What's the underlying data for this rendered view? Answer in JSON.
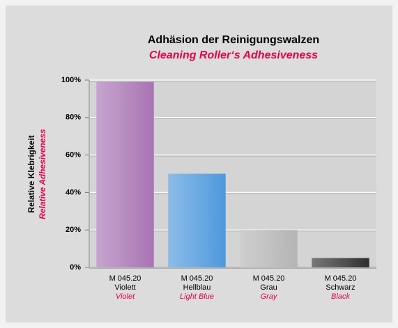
{
  "chart_data": {
    "type": "bar",
    "title": "Adhäsion der Reinigungswalzen",
    "subtitle": "Cleaning Roller‘s Adhesiveness",
    "y_label": "Relative Klebrigkeit",
    "y_label_translation": "Relative Adhesiveness",
    "categories": [
      [
        "M 045.20",
        "Violett",
        "Violet"
      ],
      [
        "M 045.20",
        "Hellblau",
        "Light Blue"
      ],
      [
        "M 045.20",
        "Grau",
        "Gray"
      ],
      [
        "M 045.20",
        "Schwarz",
        "Black"
      ]
    ],
    "values": [
      99,
      50,
      20,
      5
    ],
    "colors": [
      "#a873b3",
      "#4d98dc",
      "#b4b4b4",
      "#2e2e2e"
    ],
    "ylim": [
      0,
      100
    ],
    "yticks": [
      {
        "value": 0,
        "label": "0%"
      },
      {
        "value": 20,
        "label": "20%"
      },
      {
        "value": 40,
        "label": "40%"
      },
      {
        "value": 60,
        "label": "60%"
      },
      {
        "value": 80,
        "label": "80%"
      },
      {
        "value": 100,
        "label": "100%"
      }
    ],
    "grid": true
  }
}
